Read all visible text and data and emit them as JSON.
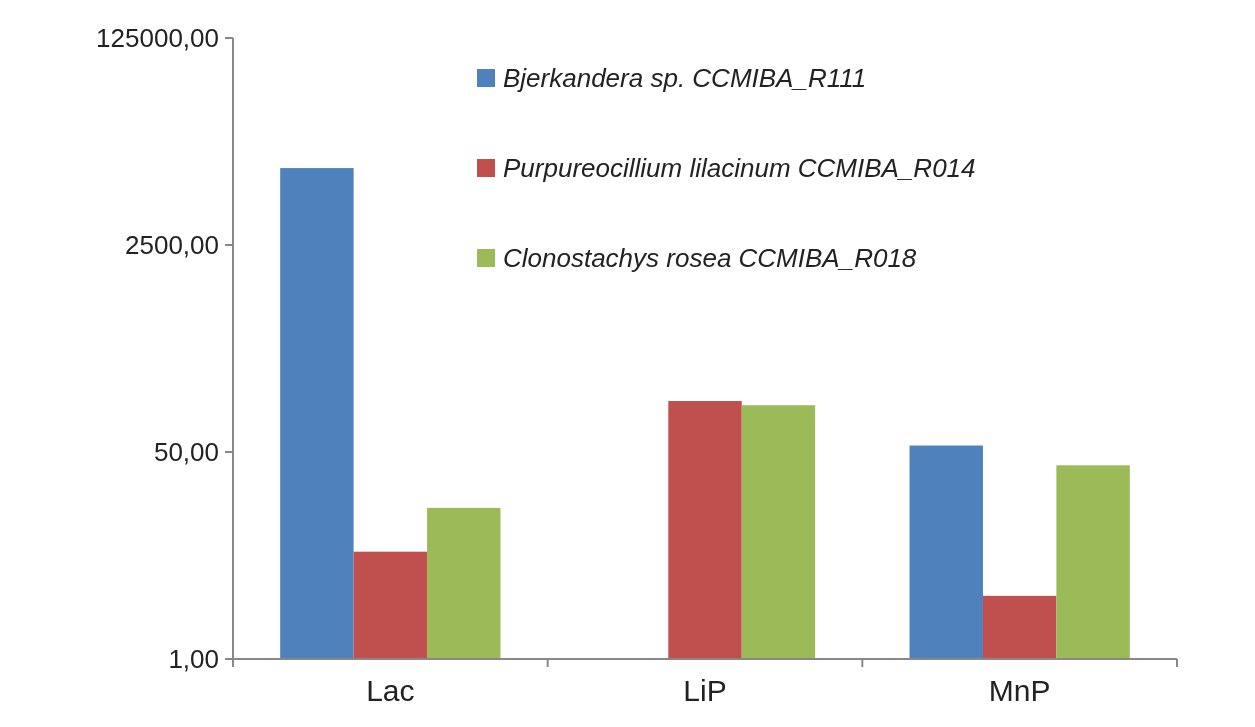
{
  "chart_data": {
    "type": "bar",
    "categories": [
      "Lac",
      "LiP",
      "MnP"
    ],
    "series": [
      {
        "name": "Bjerkandera sp. CCMIBA_R111",
        "color": "#4f81bd",
        "values": [
          10700,
          null,
          56.5
        ]
      },
      {
        "name": "Purpureocillium lilacinum CCMIBA_R014",
        "color": "#c0504d",
        "values": [
          7.6,
          131,
          3.3
        ]
      },
      {
        "name": "Clonostachys rosea CCMIBA_R018",
        "color": "#9bbb59",
        "values": [
          17.4,
          121,
          38.9
        ]
      }
    ],
    "log": true,
    "ylim": [
      1,
      125000
    ],
    "yticks": [
      {
        "value": 1,
        "label": "1,00"
      },
      {
        "value": 50,
        "label": "50,00"
      },
      {
        "value": 2500,
        "label": "2500,00"
      },
      {
        "value": 125000,
        "label": "125000,00"
      }
    ],
    "legend": "top right",
    "grid": false
  }
}
